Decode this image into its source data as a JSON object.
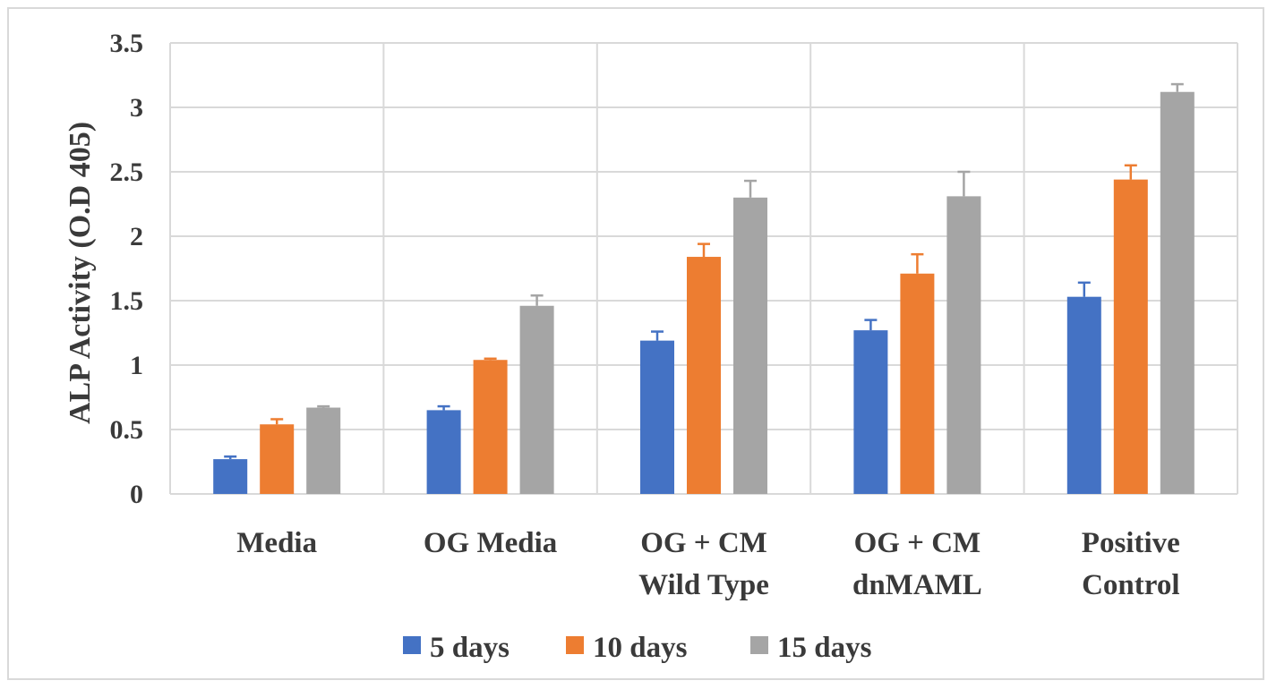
{
  "chart_data": {
    "type": "bar",
    "title": "",
    "xlabel": "",
    "ylabel": "ALP Activity (O.D 405)",
    "ylim": [
      0,
      3.5
    ],
    "yticks": [
      "0",
      "0.5",
      "1",
      "1.5",
      "2",
      "2.5",
      "3",
      "3.5"
    ],
    "grid": true,
    "legend_position": "bottom",
    "categories": [
      [
        "Media"
      ],
      [
        "OG Media"
      ],
      [
        "OG + CM",
        "Wild Type"
      ],
      [
        "OG + CM",
        "dnMAML"
      ],
      [
        "Positive",
        "Control"
      ]
    ],
    "series": [
      {
        "name": "5 days",
        "color": "#4472c4",
        "values": [
          0.27,
          0.65,
          1.19,
          1.27,
          1.53
        ],
        "errors": [
          0.02,
          0.03,
          0.07,
          0.08,
          0.11
        ]
      },
      {
        "name": "10 days",
        "color": "#ed7d31",
        "values": [
          0.54,
          1.04,
          1.84,
          1.71,
          2.44
        ],
        "errors": [
          0.04,
          0.01,
          0.1,
          0.15,
          0.11
        ]
      },
      {
        "name": "15 days",
        "color": "#a5a5a5",
        "values": [
          0.67,
          1.46,
          2.3,
          2.31,
          3.12
        ],
        "errors": [
          0.01,
          0.08,
          0.13,
          0.19,
          0.06
        ]
      }
    ]
  }
}
